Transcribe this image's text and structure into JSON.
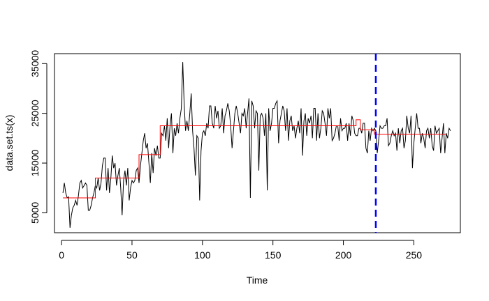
{
  "chart_data": {
    "type": "line",
    "title": "",
    "xlabel": "Time",
    "ylabel": "data.set.ts(x)",
    "xlim": [
      -5,
      283
    ],
    "ylim": [
      1000,
      37000
    ],
    "x_ticks": [
      0,
      50,
      100,
      150,
      200,
      250
    ],
    "y_ticks": [
      5000,
      15000,
      25000,
      35000
    ],
    "grid": false,
    "legend": "none",
    "series": [
      {
        "kind": "raw",
        "color": "#000000",
        "x_start": 1,
        "y": [
          9000,
          11000,
          9000,
          8000,
          8200,
          2000,
          4500,
          6000,
          6500,
          7500,
          6500,
          8500,
          11000,
          11500,
          10000,
          10500,
          11000,
          10500,
          5500,
          5500,
          6500,
          8000,
          9000,
          10500,
          10000,
          12000,
          9500,
          11000,
          14500,
          16000,
          16000,
          9500,
          14000,
          9000,
          12000,
          16500,
          14000,
          15000,
          10500,
          12500,
          14000,
          10000,
          4500,
          11500,
          13500,
          10500,
          14000,
          7500,
          10000,
          11500,
          11000,
          11500,
          13500,
          14000,
          11000,
          14500,
          17000,
          19500,
          21000,
          18000,
          19000,
          15000,
          11000,
          17000,
          13000,
          18000,
          16500,
          18500,
          16000,
          16000,
          21000,
          20500,
          22500,
          19500,
          24000,
          18000,
          22500,
          25000,
          17000,
          22000,
          20500,
          23000,
          21000,
          24000,
          26000,
          35300,
          27000,
          21500,
          23500,
          21500,
          25000,
          29000,
          21500,
          18000,
          12500,
          20500,
          20000,
          7500,
          17500,
          21000,
          21500,
          20500,
          23000,
          22000,
          26500,
          26500,
          23000,
          22000,
          26500,
          24000,
          25500,
          22000,
          22500,
          26000,
          21000,
          24500,
          25500,
          27000,
          25500,
          22500,
          18000,
          21500,
          25000,
          26500,
          25000,
          23000,
          21000,
          25000,
          24500,
          26000,
          22000,
          25000,
          28000,
          8000,
          27500,
          26500,
          22000,
          25500,
          25000,
          13500,
          24500,
          25000,
          24000,
          20500,
          25000,
          9500,
          26000,
          21500,
          23000,
          26000,
          26000,
          27000,
          27500,
          19000,
          23500,
          25000,
          26500,
          25500,
          21500,
          26000,
          19500,
          23500,
          24500,
          21500,
          22500,
          20000,
          22000,
          23500,
          21000,
          26000,
          16500,
          23500,
          25000,
          20500,
          24000,
          23000,
          24500,
          20000,
          26000,
          26000,
          19500,
          25000,
          20000,
          22000,
          25500,
          25000,
          23000,
          20500,
          26000,
          24000,
          26000,
          19500,
          20000,
          21000,
          22500,
          22500,
          19500,
          24000,
          21500,
          22000,
          22000,
          23000,
          19500,
          23000,
          20500,
          24500,
          23500,
          21000,
          20500,
          20500,
          22000,
          22000,
          21000,
          23000,
          23000,
          18000,
          17000,
          21500,
          19500,
          22000,
          21500,
          22000,
          21500,
          17000,
          19500,
          22500,
          22000,
          22000,
          22500,
          22500,
          24000,
          18500,
          19000,
          20500,
          21500,
          20500,
          21000,
          17500,
          22000,
          19000,
          21500,
          22000,
          18000,
          19500,
          24500,
          22000,
          21000,
          24500,
          14000,
          19000,
          22000,
          25000,
          22000,
          22000,
          19000,
          21000,
          20000,
          18000,
          21500,
          22000,
          20000,
          22000,
          18500,
          17500,
          22500,
          21000,
          21500,
          22000,
          17000,
          20000,
          23000,
          17000,
          21000,
          20000,
          22000,
          21500
        ]
      },
      {
        "kind": "piecewise-mean",
        "color": "#ff0000",
        "segments": [
          {
            "x0": 1,
            "x1": 24,
            "y": 8000
          },
          {
            "x0": 24,
            "x1": 55,
            "y": 12000
          },
          {
            "x0": 55,
            "x1": 70,
            "y": 16700
          },
          {
            "x0": 70,
            "x1": 209,
            "y": 22500
          },
          {
            "x0": 209,
            "x1": 212,
            "y": 23700
          },
          {
            "x0": 212,
            "x1": 222,
            "y": 21700
          },
          {
            "x0": 222,
            "x1": 273,
            "y": 20800
          }
        ]
      }
    ],
    "changepoint": {
      "x": 223,
      "color": "#0000ff",
      "style": "dashed"
    }
  }
}
